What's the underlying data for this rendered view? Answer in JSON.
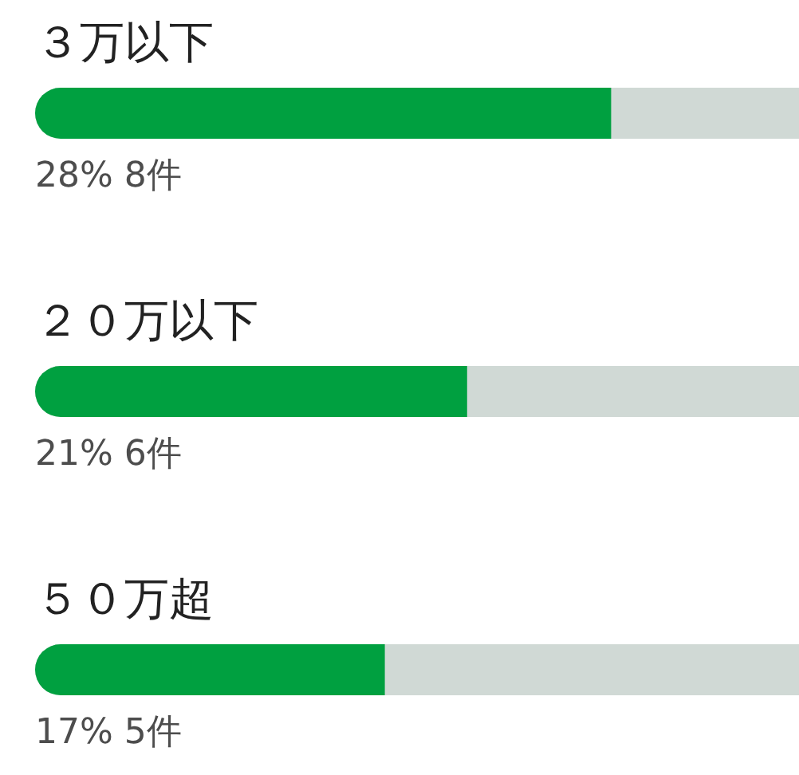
{
  "chart_data": {
    "type": "bar",
    "orientation": "horizontal",
    "categories": [
      "３万以下",
      "２０万以下",
      "５０万超"
    ],
    "values": [
      28,
      21,
      17
    ],
    "color": "#00a040",
    "value_labels": [
      "28% 8件",
      "21% 6件",
      "17% 5件"
    ],
    "tick_labels": "y"
  }
}
